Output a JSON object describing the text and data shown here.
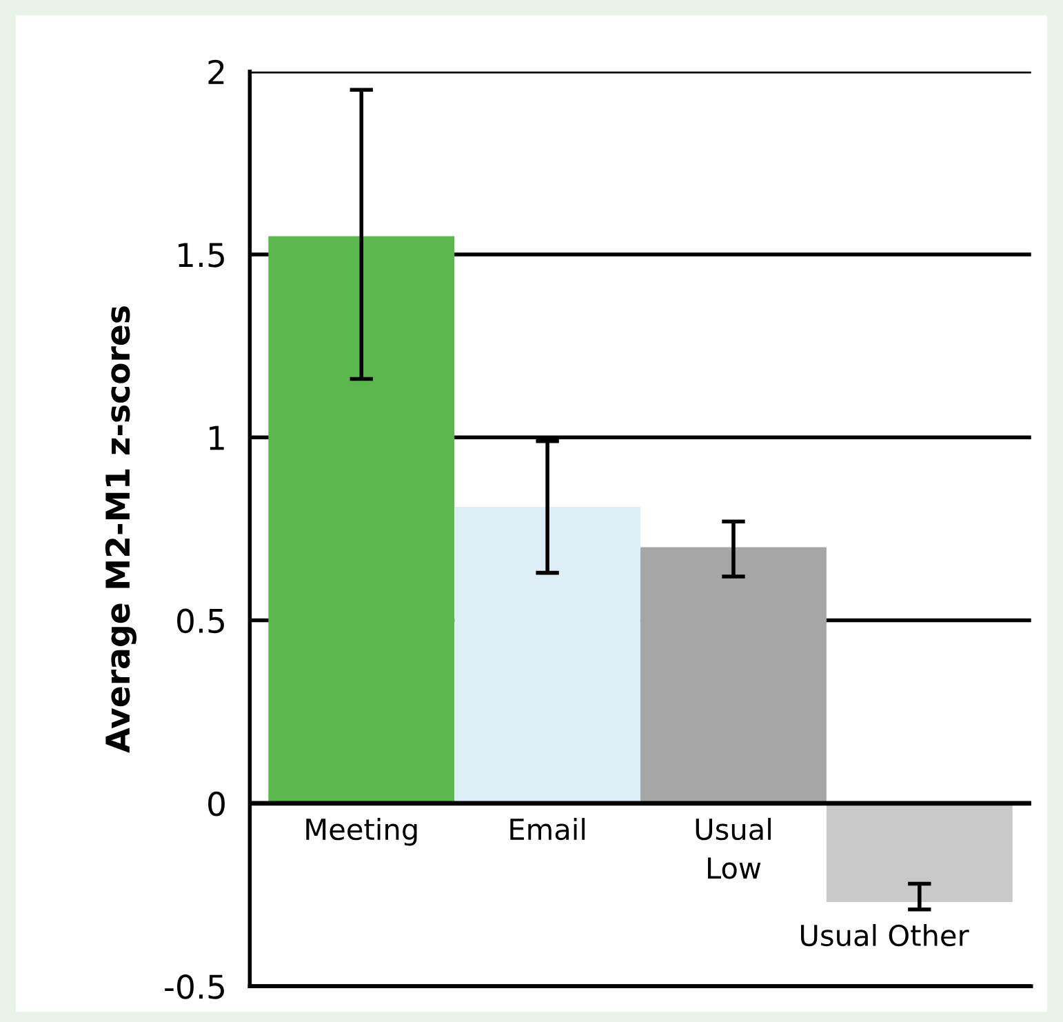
{
  "chart_data": {
    "type": "bar",
    "ylabel": "Average M2-M1 z-scores",
    "categories": [
      "Meeting",
      "Email",
      "Usual\nLow",
      "Usual Other"
    ],
    "values": [
      1.55,
      0.81,
      0.7,
      -0.27
    ],
    "colors": [
      "#5ab84c",
      "#ddeef6",
      "#a6a6a6",
      "#c9c9c9"
    ],
    "errors": [
      [
        1.16,
        1.95
      ],
      [
        0.63,
        0.99
      ],
      [
        0.62,
        0.77
      ],
      [
        -0.29,
        -0.22
      ]
    ],
    "ylim": [
      -0.5,
      2
    ],
    "yticks": [
      -0.5,
      0,
      0.5,
      1,
      1.5,
      2
    ],
    "grid": "y",
    "tick_labels": "y"
  }
}
